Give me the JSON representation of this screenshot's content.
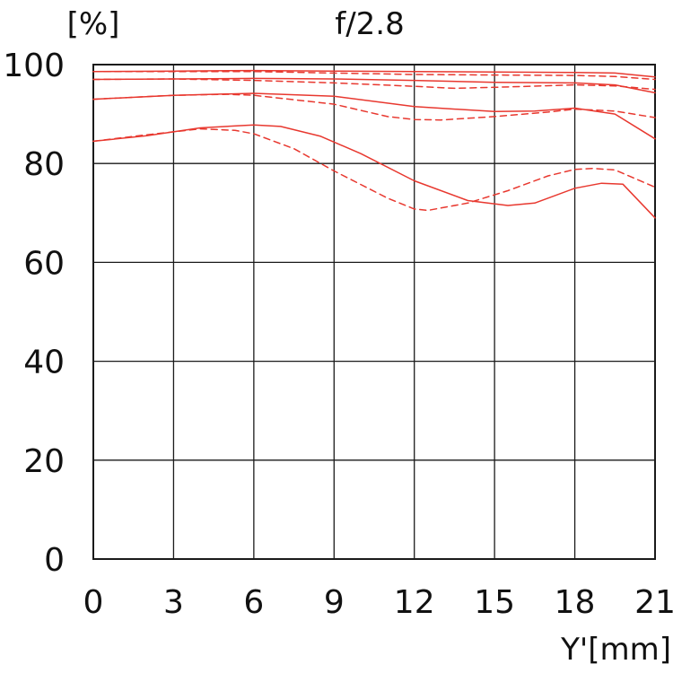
{
  "chart_data": {
    "type": "line",
    "title": "f/2.8",
    "ylabel": "[%]",
    "xlabel": "Y'[mm]",
    "xlim": [
      0,
      21
    ],
    "ylim": [
      0,
      100
    ],
    "x_ticks": [
      0,
      3,
      6,
      9,
      12,
      15,
      18,
      21
    ],
    "y_ticks": [
      0,
      20,
      40,
      60,
      80,
      100
    ],
    "grid": true,
    "line_color": "#e8382f",
    "series": [
      {
        "style": "solid",
        "points": [
          [
            0,
            98.6
          ],
          [
            3,
            98.7
          ],
          [
            6,
            98.8
          ],
          [
            9,
            98.7
          ],
          [
            12,
            98.6
          ],
          [
            15,
            98.5
          ],
          [
            18,
            98.4
          ],
          [
            19.5,
            98.3
          ],
          [
            21,
            97.5
          ]
        ]
      },
      {
        "style": "dashed",
        "points": [
          [
            0,
            98.6
          ],
          [
            3,
            98.6
          ],
          [
            6,
            98.6
          ],
          [
            9,
            98.3
          ],
          [
            12,
            98.0
          ],
          [
            15,
            97.9
          ],
          [
            18,
            97.8
          ],
          [
            19.5,
            97.6
          ],
          [
            21,
            97.0
          ]
        ]
      },
      {
        "style": "solid",
        "points": [
          [
            0,
            97.0
          ],
          [
            3,
            97.1
          ],
          [
            6,
            97.2
          ],
          [
            9,
            97.1
          ],
          [
            12,
            96.8
          ],
          [
            15,
            96.4
          ],
          [
            18,
            96.3
          ],
          [
            19.5,
            95.9
          ],
          [
            21,
            94.3
          ]
        ]
      },
      {
        "style": "dashed",
        "points": [
          [
            0,
            97.0
          ],
          [
            3,
            97.1
          ],
          [
            6,
            96.8
          ],
          [
            9,
            96.3
          ],
          [
            12,
            95.6
          ],
          [
            13.5,
            95.2
          ],
          [
            15,
            95.4
          ],
          [
            18,
            95.9
          ],
          [
            19.5,
            95.7
          ],
          [
            21,
            95.0
          ]
        ]
      },
      {
        "style": "solid",
        "points": [
          [
            0,
            93.0
          ],
          [
            3,
            93.8
          ],
          [
            6,
            94.2
          ],
          [
            9,
            93.6
          ],
          [
            12,
            91.5
          ],
          [
            15,
            90.5
          ],
          [
            16.5,
            90.6
          ],
          [
            18,
            91.2
          ],
          [
            19.5,
            90.0
          ],
          [
            21,
            85.0
          ]
        ]
      },
      {
        "style": "dashed",
        "points": [
          [
            0,
            93.0
          ],
          [
            3,
            93.8
          ],
          [
            5,
            94.0
          ],
          [
            6,
            93.8
          ],
          [
            9,
            92.0
          ],
          [
            11,
            89.5
          ],
          [
            12,
            88.9
          ],
          [
            13,
            88.8
          ],
          [
            15,
            89.5
          ],
          [
            17,
            90.4
          ],
          [
            18,
            91.0
          ],
          [
            19.5,
            90.6
          ],
          [
            21,
            89.3
          ]
        ]
      },
      {
        "style": "solid",
        "points": [
          [
            0,
            84.5
          ],
          [
            2,
            85.6
          ],
          [
            4,
            87.2
          ],
          [
            6,
            87.8
          ],
          [
            7,
            87.5
          ],
          [
            8.5,
            85.5
          ],
          [
            10,
            82.0
          ],
          [
            12,
            76.5
          ],
          [
            14,
            72.5
          ],
          [
            15.5,
            71.5
          ],
          [
            16.5,
            72.0
          ],
          [
            18,
            75.0
          ],
          [
            19,
            76.0
          ],
          [
            19.8,
            75.8
          ],
          [
            21,
            69.0
          ]
        ]
      },
      {
        "style": "dashed",
        "points": [
          [
            0,
            84.5
          ],
          [
            2,
            85.8
          ],
          [
            4,
            87.0
          ],
          [
            5.3,
            86.7
          ],
          [
            6,
            86.0
          ],
          [
            7.5,
            83.0
          ],
          [
            9,
            78.5
          ],
          [
            11,
            73.0
          ],
          [
            12,
            70.8
          ],
          [
            12.5,
            70.5
          ],
          [
            14,
            72.0
          ],
          [
            15.5,
            74.5
          ],
          [
            17,
            77.5
          ],
          [
            18,
            78.8
          ],
          [
            18.7,
            79.0
          ],
          [
            19.5,
            78.7
          ],
          [
            21,
            75.2
          ]
        ]
      }
    ]
  }
}
